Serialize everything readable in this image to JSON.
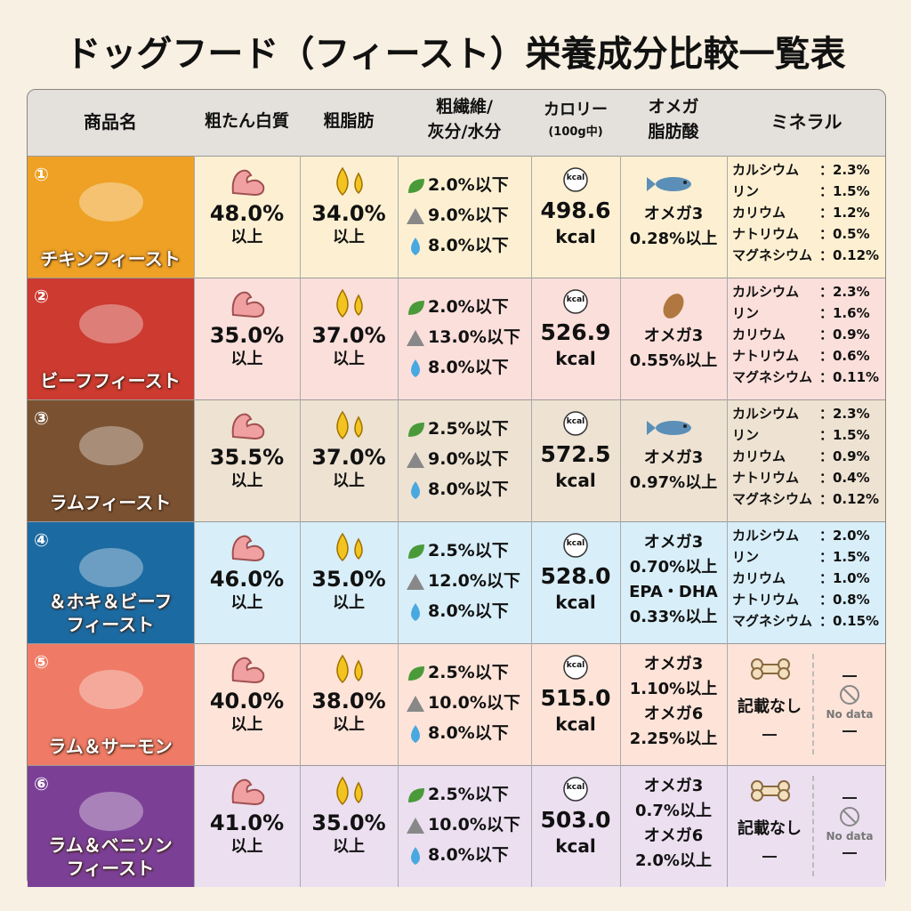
{
  "title": "ドッグフード（フィースト）栄養成分比較一覧表",
  "header": {
    "name": "商品名",
    "protein": "粗たん白質",
    "fat": "粗脂肪",
    "fiber": [
      "粗繊維/",
      "灰分/水分"
    ],
    "calorie": [
      "カロリー",
      "(100g中)"
    ],
    "omega": [
      "オメガ",
      "脂肪酸"
    ],
    "mineral": "ミネラル"
  },
  "kcal_icon": "kcal",
  "rows": [
    {
      "no": "①",
      "name": [
        "チキンフィースト"
      ],
      "protein": [
        "48.0%",
        "以上"
      ],
      "fat": [
        "34.0%",
        "以上"
      ],
      "fiber": [
        "2.0%以下",
        "9.0%以下",
        "8.0%以下"
      ],
      "calorie": [
        "498.6",
        "kcal"
      ],
      "omega": [
        "オメガ3",
        "0.28%以上"
      ],
      "minerals": [
        [
          "カルシウム",
          "：2.3%"
        ],
        [
          "リン",
          "：1.5%"
        ],
        [
          "カリウム",
          "：1.2%"
        ],
        [
          "ナトリウム",
          "：0.5%"
        ],
        [
          "マグネシウム",
          "：0.12%"
        ]
      ]
    },
    {
      "no": "②",
      "name": [
        "ビーフフィースト"
      ],
      "protein": [
        "35.0%",
        "以上"
      ],
      "fat": [
        "37.0%",
        "以上"
      ],
      "fiber": [
        "2.0%以下",
        "13.0%以下",
        "8.0%以下"
      ],
      "calorie": [
        "526.9",
        "kcal"
      ],
      "omega": [
        "オメガ3",
        "0.55%以上"
      ],
      "minerals": [
        [
          "カルシウム",
          "：2.3%"
        ],
        [
          "リン",
          "：1.6%"
        ],
        [
          "カリウム",
          "：0.9%"
        ],
        [
          "ナトリウム",
          "：0.6%"
        ],
        [
          "マグネシウム",
          "：0.11%"
        ]
      ]
    },
    {
      "no": "③",
      "name": [
        "ラムフィースト"
      ],
      "protein": [
        "35.5%",
        "以上"
      ],
      "fat": [
        "37.0%",
        "以上"
      ],
      "fiber": [
        "2.5%以下",
        "9.0%以下",
        "8.0%以下"
      ],
      "calorie": [
        "572.5",
        "kcal"
      ],
      "omega": [
        "オメガ3",
        "0.97%以上"
      ],
      "minerals": [
        [
          "カルシウム",
          "：2.3%"
        ],
        [
          "リン",
          "：1.5%"
        ],
        [
          "カリウム",
          "：0.9%"
        ],
        [
          "ナトリウム",
          "：0.4%"
        ],
        [
          "マグネシウム",
          "：0.12%"
        ]
      ]
    },
    {
      "no": "④",
      "name": [
        "＆ホキ＆ビーフ",
        "フィースト"
      ],
      "protein": [
        "46.0%",
        "以上"
      ],
      "fat": [
        "35.0%",
        "以上"
      ],
      "fiber": [
        "2.5%以下",
        "12.0%以下",
        "8.0%以下"
      ],
      "calorie": [
        "528.0",
        "kcal"
      ],
      "omega": [
        "オメガ3",
        "0.70%以上",
        "EPA・DHA",
        "0.33%以上"
      ],
      "minerals": [
        [
          "カルシウム",
          "：2.0%"
        ],
        [
          "リン",
          "：1.5%"
        ],
        [
          "カリウム",
          "：1.0%"
        ],
        [
          "ナトリウム",
          "：0.8%"
        ],
        [
          "マグネシウム",
          "：0.15%"
        ]
      ]
    },
    {
      "no": "⑤",
      "name": [
        "ラム＆サーモン"
      ],
      "protein": [
        "40.0%",
        "以上"
      ],
      "fat": [
        "38.0%",
        "以上"
      ],
      "fiber": [
        "2.5%以下",
        "10.0%以下",
        "8.0%以下"
      ],
      "calorie": [
        "515.0",
        "kcal"
      ],
      "omega": [
        "オメガ3",
        "1.10%以上",
        "オメガ6",
        "2.25%以上"
      ],
      "mineral_note": "記載なし",
      "no_data": "No data"
    },
    {
      "no": "⑥",
      "name": [
        "ラム＆ベニソン",
        "フィースト"
      ],
      "protein": [
        "41.0%",
        "以上"
      ],
      "fat": [
        "35.0%",
        "以上"
      ],
      "fiber": [
        "2.5%以下",
        "10.0%以下",
        "8.0%以下"
      ],
      "calorie": [
        "503.0",
        "kcal"
      ],
      "omega": [
        "オメガ3",
        "0.7%以上",
        "オメガ6",
        "2.0%以上"
      ],
      "mineral_note": "記載なし",
      "no_data": "No data"
    }
  ]
}
